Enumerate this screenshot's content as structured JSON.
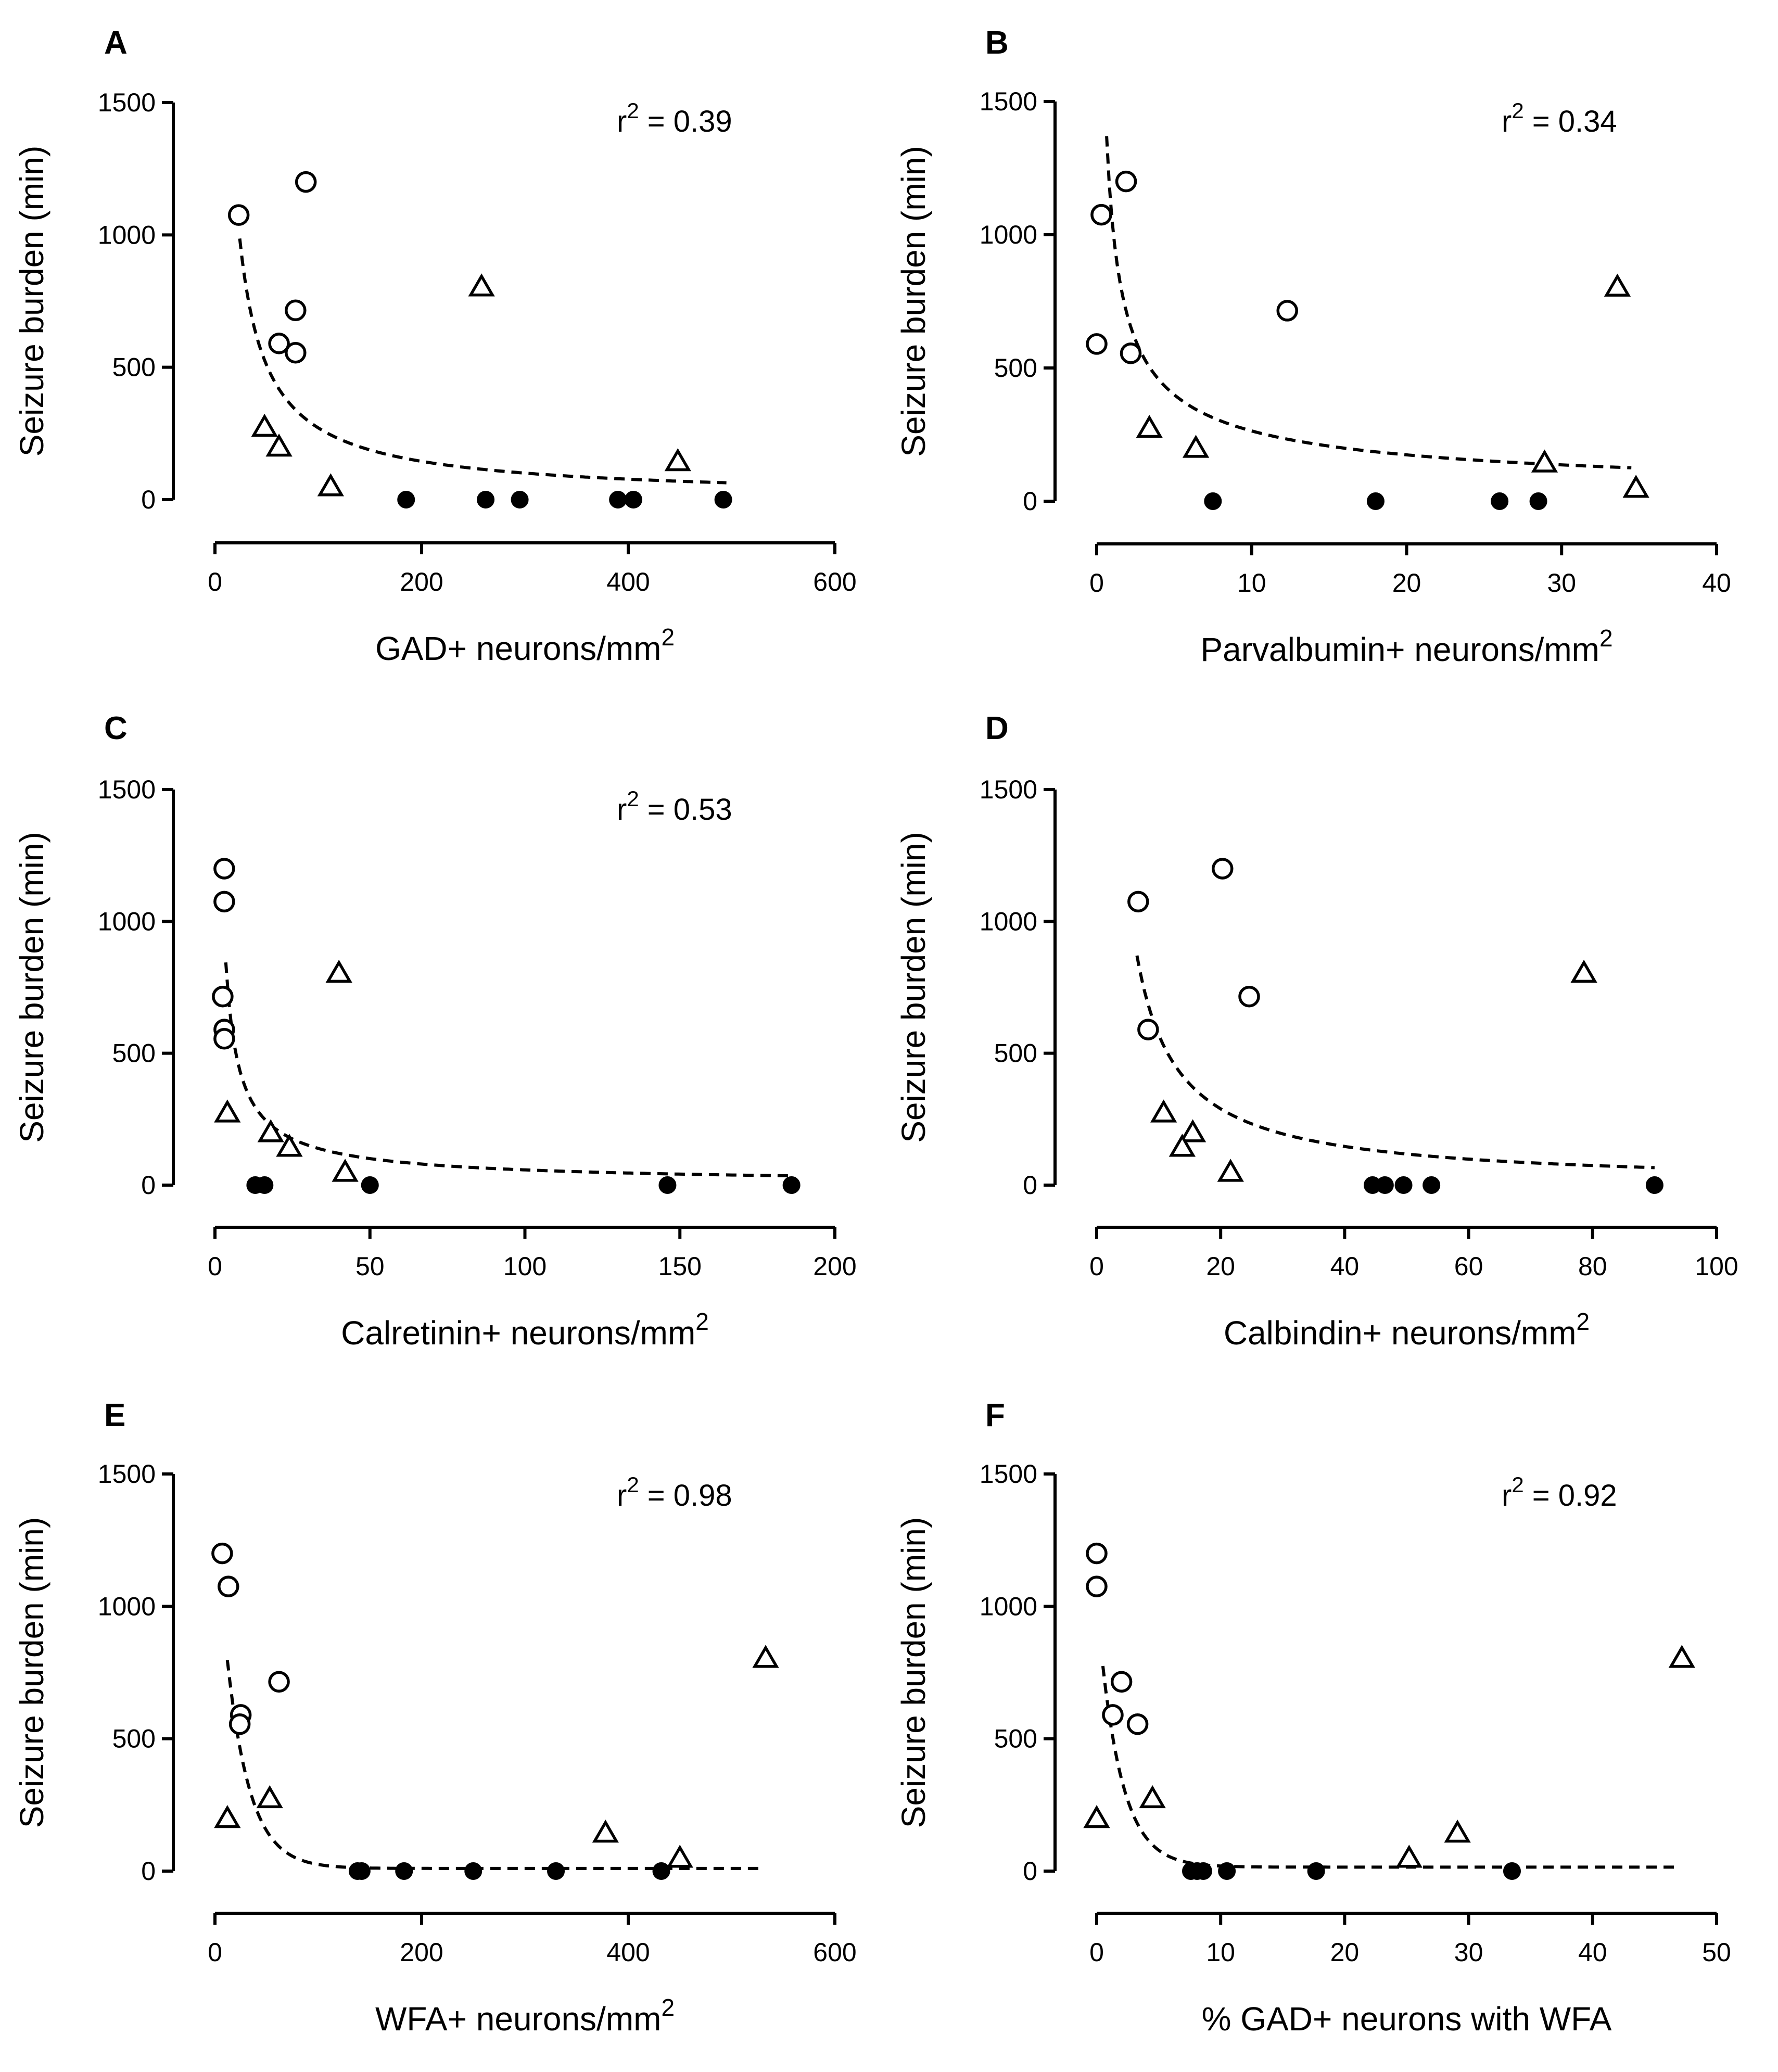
{
  "chart_data": [
    {
      "id": "A",
      "type": "scatter",
      "panel_label": "A",
      "title": "",
      "xlabel": "GAD+ neurons/mm",
      "xlabel_sup": "2",
      "ylabel": "Seizure burden (min)",
      "xlim": [
        0,
        600
      ],
      "ylim": [
        0,
        1500
      ],
      "xticks": [
        0,
        200,
        400,
        600
      ],
      "yticks": [
        0,
        500,
        1000,
        1500
      ],
      "annotation": {
        "text": "r",
        "sup": "2",
        "value": " = 0.39"
      },
      "fit": {
        "model": "power",
        "a": 17500,
        "b": -0.905,
        "xrange": [
          24,
          495
        ]
      },
      "series": [
        {
          "name": "open circles",
          "marker": "circle-open",
          "x": [
            23,
            88,
            78,
            62,
            78
          ],
          "y": [
            1075,
            1200,
            715,
            590,
            555
          ]
        },
        {
          "name": "open triangles",
          "marker": "triangle-open",
          "x": [
            258,
            48,
            62,
            112,
            448
          ],
          "y": [
            800,
            270,
            195,
            45,
            140
          ]
        },
        {
          "name": "filled circles",
          "marker": "circle-filled",
          "x": [
            185,
            262,
            295,
            390,
            405,
            492
          ],
          "y": [
            0,
            0,
            0,
            0,
            0,
            0
          ]
        }
      ]
    },
    {
      "id": "B",
      "type": "scatter",
      "panel_label": "B",
      "title": "",
      "xlabel": "Parvalbumin+ neurons/mm",
      "xlabel_sup": "2",
      "ylabel": "Seizure burden (min)",
      "xlim": [
        0,
        40
      ],
      "ylim": [
        0,
        1500
      ],
      "xticks": [
        0,
        10,
        20,
        30,
        40
      ],
      "yticks": [
        0,
        500,
        1000,
        1500
      ],
      "annotation": {
        "text": "r",
        "sup": "2",
        "value": " = 0.34"
      },
      "fit": {
        "model": "power",
        "a": 1050,
        "b": -0.6,
        "xrange": [
          0.3,
          34.5
        ]
      },
      "series": [
        {
          "name": "open circles",
          "marker": "circle-open",
          "x": [
            0.3,
            1.9,
            12.3,
            0,
            2.2
          ],
          "y": [
            1075,
            1200,
            715,
            590,
            555
          ]
        },
        {
          "name": "open triangles",
          "marker": "triangle-open",
          "x": [
            33.6,
            3.4,
            6.4,
            28.9,
            34.8
          ],
          "y": [
            800,
            270,
            195,
            140,
            45
          ]
        },
        {
          "name": "filled circles",
          "marker": "circle-filled",
          "x": [
            7.5,
            18,
            26,
            28.5
          ],
          "y": [
            0,
            0,
            0,
            0
          ]
        }
      ]
    },
    {
      "id": "C",
      "type": "scatter",
      "panel_label": "C",
      "title": "",
      "xlabel": "Calretinin+ neurons/mm",
      "xlabel_sup": "2",
      "ylabel": "Seizure burden (min)",
      "xlim": [
        0,
        200
      ],
      "ylim": [
        0,
        1500
      ],
      "xticks": [
        0,
        50,
        100,
        150,
        200
      ],
      "yticks": [
        0,
        500,
        1000,
        1500
      ],
      "annotation": {
        "text": "r",
        "sup": "2",
        "value": " = 0.53"
      },
      "fit": {
        "model": "power",
        "a": 2300,
        "b": -0.8,
        "xrange": [
          3.5,
          186
        ]
      },
      "series": [
        {
          "name": "open circles",
          "marker": "circle-open",
          "x": [
            3,
            3,
            2.5,
            3,
            3
          ],
          "y": [
            1200,
            1075,
            715,
            590,
            555
          ]
        },
        {
          "name": "open triangles",
          "marker": "triangle-open",
          "x": [
            40,
            4,
            18,
            24,
            42
          ],
          "y": [
            800,
            270,
            195,
            140,
            45
          ]
        },
        {
          "name": "filled circles",
          "marker": "circle-filled",
          "x": [
            13,
            16,
            50,
            146,
            186
          ],
          "y": [
            0,
            0,
            0,
            0,
            0
          ]
        }
      ]
    },
    {
      "id": "D",
      "type": "scatter",
      "panel_label": "D",
      "title": "",
      "xlabel": "Calbindin+ neurons/mm",
      "xlabel_sup": "2",
      "ylabel": "Seizure burden (min)",
      "xlim": [
        0,
        100
      ],
      "ylim": [
        0,
        1500
      ],
      "xticks": [
        0,
        20,
        40,
        60,
        80,
        100
      ],
      "yticks": [
        0,
        500,
        1000,
        1500
      ],
      "annotation": null,
      "fit": {
        "model": "power",
        "a": 5450,
        "b": -0.98,
        "xrange": [
          6.5,
          90
        ]
      },
      "series": [
        {
          "name": "open circles",
          "marker": "circle-open",
          "x": [
            20.3,
            6.7,
            24.6,
            8.3
          ],
          "y": [
            1200,
            1075,
            715,
            590
          ]
        },
        {
          "name": "open triangles",
          "marker": "triangle-open",
          "x": [
            78.6,
            10.8,
            15.5,
            13.8,
            21.6
          ],
          "y": [
            800,
            270,
            195,
            140,
            45
          ]
        },
        {
          "name": "filled circles",
          "marker": "circle-filled",
          "x": [
            44.5,
            46.5,
            49.5,
            54,
            90
          ],
          "y": [
            0,
            0,
            0,
            0,
            0
          ]
        }
      ]
    },
    {
      "id": "E",
      "type": "scatter",
      "panel_label": "E",
      "title": "",
      "xlabel": "WFA+ neurons/mm",
      "xlabel_sup": "2",
      "ylabel": "Seizure burden (min)",
      "xlim": [
        0,
        600
      ],
      "ylim": [
        0,
        1500
      ],
      "xticks": [
        0,
        200,
        400,
        600
      ],
      "yticks": [
        0,
        500,
        1000,
        1500
      ],
      "annotation": {
        "text": "r",
        "sup": "2",
        "value": " = 0.98"
      },
      "fit": {
        "model": "exp",
        "a": 1350,
        "k": 0.045,
        "c": 10,
        "xrange": [
          12,
          530
        ]
      },
      "series": [
        {
          "name": "open circles",
          "marker": "circle-open",
          "x": [
            7,
            13,
            62,
            25,
            24
          ],
          "y": [
            1200,
            1075,
            715,
            590,
            555
          ]
        },
        {
          "name": "open triangles",
          "marker": "triangle-open",
          "x": [
            533,
            53,
            12,
            378,
            450
          ],
          "y": [
            800,
            270,
            195,
            140,
            45
          ]
        },
        {
          "name": "filled circles",
          "marker": "circle-filled",
          "x": [
            138,
            142,
            183,
            250,
            330,
            432
          ],
          "y": [
            0,
            0,
            0,
            0,
            0,
            0
          ]
        }
      ]
    },
    {
      "id": "F",
      "type": "scatter",
      "panel_label": "F",
      "title": "",
      "xlabel": "% GAD+ neurons with WFA",
      "xlabel_sup": "",
      "ylabel": "Seizure burden (min)",
      "xlim": [
        0,
        50
      ],
      "ylim": [
        0,
        1500
      ],
      "xticks": [
        0,
        10,
        20,
        30,
        40,
        50
      ],
      "yticks": [
        0,
        500,
        1000,
        1500
      ],
      "annotation": {
        "text": "r",
        "sup": "2",
        "value": " = 0.92"
      },
      "fit": {
        "model": "exp",
        "a": 1000,
        "k": 0.55,
        "c": 15,
        "xrange": [
          0.5,
          47
        ]
      },
      "series": [
        {
          "name": "open circles",
          "marker": "circle-open",
          "x": [
            0,
            0,
            2,
            1.3,
            3.3
          ],
          "y": [
            1200,
            1075,
            715,
            590,
            555
          ]
        },
        {
          "name": "open triangles",
          "marker": "triangle-open",
          "x": [
            47.2,
            4.5,
            0,
            29.1,
            25.2
          ],
          "y": [
            800,
            270,
            195,
            140,
            45
          ]
        },
        {
          "name": "filled circles",
          "marker": "circle-filled",
          "x": [
            7.6,
            8.1,
            8.6,
            10.5,
            17.7,
            33.5
          ],
          "y": [
            0,
            0,
            0,
            0,
            0,
            0
          ]
        }
      ]
    }
  ]
}
